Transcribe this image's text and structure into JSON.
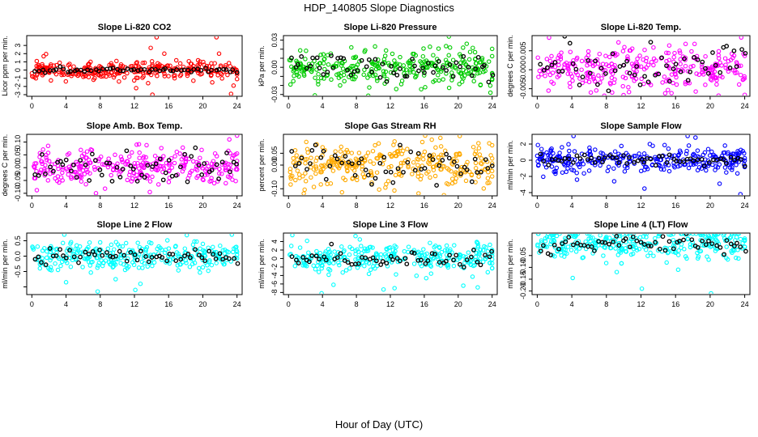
{
  "figure": {
    "title": "HDP_140805  Slope Diagnostics",
    "xlabel": "Hour of Day (UTC)"
  },
  "chart_data": [
    {
      "type": "scatter",
      "title": "Slope Li-820 CO2",
      "ylabel": "Licor ppm per min.",
      "xlim": [
        -0.6,
        24.6
      ],
      "ylim": [
        -3.2,
        4.2
      ],
      "xticks": [
        0,
        4,
        8,
        12,
        16,
        20,
        24
      ],
      "yticks": [
        -3,
        -2,
        -1,
        0,
        1,
        2,
        3
      ],
      "ytick_labels": [
        "-3",
        "-2",
        "-1",
        "0",
        "1",
        "2",
        "3"
      ],
      "color": "#ff0000",
      "spread": 0.55,
      "mean_spread": 0.15,
      "outliers": [
        {
          "x": 14.6,
          "y": 4.0
        },
        {
          "x": 21.6,
          "y": 4.0
        },
        {
          "x": 13.9,
          "y": 2.7
        },
        {
          "x": 12.2,
          "y": -2.2
        },
        {
          "x": 14.1,
          "y": -3.0
        },
        {
          "x": 13.6,
          "y": -1.6
        },
        {
          "x": 21.9,
          "y": 2.0
        },
        {
          "x": 23.6,
          "y": -1.9
        },
        {
          "x": 23.3,
          "y": -2.9
        },
        {
          "x": 0.1,
          "y": -0.8
        },
        {
          "x": 18.9,
          "y": -1.3
        },
        {
          "x": 15.5,
          "y": 2.0
        },
        {
          "x": 21.1,
          "y": -1.5
        },
        {
          "x": 9.9,
          "y": 1.1
        },
        {
          "x": 16.7,
          "y": -1.0
        }
      ],
      "seed": 11
    },
    {
      "type": "scatter",
      "title": "Slope Li-820 Pressure",
      "ylabel": "kPa per min.",
      "xlim": [
        -0.6,
        24.6
      ],
      "ylim": [
        -0.032,
        0.035
      ],
      "xticks": [
        0,
        4,
        8,
        12,
        16,
        20,
        24
      ],
      "yticks": [
        -0.03,
        -0.02,
        -0.01,
        0.0,
        0.01,
        0.02,
        0.03
      ],
      "ytick_labels": [
        "-0.03",
        "",
        "",
        "0.00",
        "",
        "",
        "0.03"
      ],
      "color": "#00cc00",
      "spread": 0.009,
      "mean_spread": 0.007,
      "outliers": [
        {
          "x": 18.9,
          "y": 0.034
        },
        {
          "x": 3.1,
          "y": -0.031
        },
        {
          "x": 23.8,
          "y": -0.028
        },
        {
          "x": 7.4,
          "y": 0.022
        },
        {
          "x": 16.1,
          "y": -0.022
        },
        {
          "x": 10.2,
          "y": 0.023
        },
        {
          "x": 12.7,
          "y": -0.024
        },
        {
          "x": 21.0,
          "y": 0.026
        }
      ],
      "seed": 23
    },
    {
      "type": "scatter",
      "title": "Slope Li-820 Temp.",
      "ylabel": "degrees C per min.",
      "xlim": [
        -0.6,
        24.6
      ],
      "ylim": [
        -0.007,
        0.009
      ],
      "xticks": [
        0,
        4,
        8,
        12,
        16,
        20,
        24
      ],
      "yticks": [
        -0.005,
        0.0,
        0.005
      ],
      "ytick_labels": [
        "-0.005",
        "0.000",
        "0.005"
      ],
      "color": "#ff00ff",
      "spread": 0.0028,
      "mean_spread": 0.0025,
      "outliers": [
        {
          "x": 23.6,
          "y": 0.0085
        },
        {
          "x": 14.8,
          "y": -0.0062
        },
        {
          "x": 9.4,
          "y": 0.0072
        },
        {
          "x": 1.3,
          "y": -0.0055
        },
        {
          "x": 18.2,
          "y": 0.0068
        },
        {
          "x": 6.2,
          "y": -0.006
        }
      ],
      "seed": 37
    },
    {
      "type": "scatter",
      "title": "Slope Amb. Box Temp.",
      "ylabel": "degrees C per min.",
      "xlim": [
        -0.6,
        24.6
      ],
      "ylim": [
        -0.11,
        0.13
      ],
      "xticks": [
        0,
        4,
        8,
        12,
        16,
        20,
        24
      ],
      "yticks": [
        -0.1,
        -0.05,
        0.0,
        0.05,
        0.1
      ],
      "ytick_labels": [
        "-0.10",
        "-0.05",
        "0.00",
        "0.05",
        "0.10"
      ],
      "color": "#ff00ff",
      "spread": 0.035,
      "mean_spread": 0.035,
      "outliers": [
        {
          "x": 24.0,
          "y": 0.125
        },
        {
          "x": 23.1,
          "y": 0.11
        },
        {
          "x": 7.5,
          "y": -0.1
        },
        {
          "x": 13.8,
          "y": -0.095
        },
        {
          "x": 1.9,
          "y": 0.085
        }
      ],
      "seed": 41
    },
    {
      "type": "scatter",
      "title": "Slope Gas Stream RH",
      "ylabel": "percent per min.",
      "xlim": [
        -0.6,
        24.6
      ],
      "ylim": [
        -0.13,
        0.13
      ],
      "xticks": [
        0,
        4,
        8,
        12,
        16,
        20,
        24
      ],
      "yticks": [
        -0.1,
        -0.05,
        0.0,
        0.05
      ],
      "ytick_labels": [
        "-0.10",
        "",
        "0.00",
        "0.05"
      ],
      "color": "#ffaa00",
      "spread": 0.045,
      "mean_spread": 0.04,
      "outliers": [
        {
          "x": 16.1,
          "y": 0.125
        },
        {
          "x": 1.8,
          "y": -0.12
        },
        {
          "x": 17.9,
          "y": 0.115
        },
        {
          "x": 6.3,
          "y": -0.115
        },
        {
          "x": 12.5,
          "y": 0.1
        }
      ],
      "seed": 53
    },
    {
      "type": "scatter",
      "title": "Slope Sample Flow",
      "ylabel": "ml/min per min.",
      "xlim": [
        -0.6,
        24.6
      ],
      "ylim": [
        -4.4,
        3.2
      ],
      "xticks": [
        0,
        4,
        8,
        12,
        16,
        20,
        24
      ],
      "yticks": [
        -4,
        -2,
        0,
        2
      ],
      "ytick_labels": [
        "-4",
        "-2",
        "0",
        "2"
      ],
      "color": "#0000ff",
      "spread": 0.7,
      "mean_spread": 0.35,
      "outliers": [
        {
          "x": 23.5,
          "y": -4.2
        },
        {
          "x": 4.2,
          "y": 3.0
        },
        {
          "x": 17.4,
          "y": 3.0
        },
        {
          "x": 12.4,
          "y": -3.5
        },
        {
          "x": 18.3,
          "y": 2.8
        },
        {
          "x": 8.9,
          "y": -2.6
        },
        {
          "x": 21.1,
          "y": -2.9
        },
        {
          "x": 4.6,
          "y": -2.4
        }
      ],
      "seed": 67
    },
    {
      "type": "scatter",
      "title": "Slope Line 2 Flow",
      "ylabel": "ml/min per min.",
      "xlim": [
        -0.6,
        24.6
      ],
      "ylim": [
        -1.25,
        0.75
      ],
      "xticks": [
        0,
        4,
        8,
        12,
        16,
        20,
        24
      ],
      "yticks": [
        -1.0,
        -0.5,
        0.0,
        0.5
      ],
      "ytick_labels": [
        "",
        "-0.5",
        "0.0",
        "0.5"
      ],
      "color": "#00ffff",
      "spread": 0.22,
      "mean_spread": 0.12,
      "outliers": [
        {
          "x": 7.7,
          "y": -1.15
        },
        {
          "x": 12.1,
          "y": -1.1
        },
        {
          "x": 4.0,
          "y": -0.85
        },
        {
          "x": 12.7,
          "y": -0.9
        },
        {
          "x": 3.8,
          "y": 0.7
        },
        {
          "x": 23.4,
          "y": 0.7
        },
        {
          "x": 9.8,
          "y": -0.75
        }
      ],
      "seed": 79
    },
    {
      "type": "scatter",
      "title": "Slope Line 3 Flow",
      "ylabel": "ml/min per min.",
      "xlim": [
        -0.6,
        24.6
      ],
      "ylim": [
        -8.5,
        6.0
      ],
      "xticks": [
        0,
        4,
        8,
        12,
        16,
        20,
        24
      ],
      "yticks": [
        -8,
        -6,
        -4,
        -2,
        0,
        2,
        4
      ],
      "ytick_labels": [
        "-8",
        "-6",
        "-4",
        "-2",
        "0",
        "2",
        "4"
      ],
      "color": "#00ffff",
      "spread": 1.8,
      "mean_spread": 0.9,
      "outliers": [
        {
          "x": 3.9,
          "y": -8.2
        },
        {
          "x": 12.5,
          "y": -7.0
        },
        {
          "x": 22.3,
          "y": -6.8
        },
        {
          "x": 7.9,
          "y": 5.3
        },
        {
          "x": 8.4,
          "y": 4.5
        },
        {
          "x": 11.2,
          "y": -7.3
        },
        {
          "x": 20.6,
          "y": -6.4
        },
        {
          "x": 5.3,
          "y": -6.2
        }
      ],
      "seed": 97
    },
    {
      "type": "scatter",
      "title": "Slope Line 4 (LT) Flow",
      "ylabel": "ml/min per min.",
      "xlim": [
        -0.6,
        24.6
      ],
      "ylim": [
        -0.215,
        0.045
      ],
      "xticks": [
        0,
        4,
        8,
        12,
        16,
        20,
        24
      ],
      "yticks": [
        -0.2,
        -0.15,
        -0.1,
        -0.05
      ],
      "ytick_labels": [
        "-0.20",
        "-0.15",
        "-0.10",
        "-0.05"
      ],
      "color": "#00ffff",
      "spread": 0.035,
      "mean_spread": 0.02,
      "outliers": [
        {
          "x": 12.1,
          "y": -0.19
        },
        {
          "x": 20.1,
          "y": -0.21
        },
        {
          "x": 4.1,
          "y": -0.145
        },
        {
          "x": 9.2,
          "y": -0.12
        },
        {
          "x": 16.3,
          "y": -0.11
        }
      ],
      "seed": 113
    }
  ]
}
